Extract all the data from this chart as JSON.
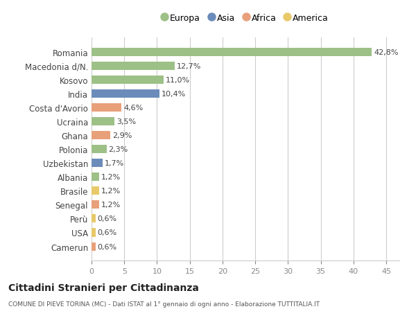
{
  "countries": [
    "Romania",
    "Macedonia d/N.",
    "Kosovo",
    "India",
    "Costa d'Avorio",
    "Ucraina",
    "Ghana",
    "Polonia",
    "Uzbekistan",
    "Albania",
    "Brasile",
    "Senegal",
    "Perù",
    "USA",
    "Camerun"
  ],
  "values": [
    42.8,
    12.7,
    11.0,
    10.4,
    4.6,
    3.5,
    2.9,
    2.3,
    1.7,
    1.2,
    1.2,
    1.2,
    0.6,
    0.6,
    0.6
  ],
  "labels": [
    "42,8%",
    "12,7%",
    "11,0%",
    "10,4%",
    "4,6%",
    "3,5%",
    "2,9%",
    "2,3%",
    "1,7%",
    "1,2%",
    "1,2%",
    "1,2%",
    "0,6%",
    "0,6%",
    "0,6%"
  ],
  "continents": [
    "Europa",
    "Europa",
    "Europa",
    "Asia",
    "Africa",
    "Europa",
    "Africa",
    "Europa",
    "Asia",
    "Europa",
    "America",
    "Africa",
    "America",
    "America",
    "Africa"
  ],
  "colors": {
    "Europa": "#9dc087",
    "Asia": "#6b8cba",
    "Africa": "#e8a07a",
    "America": "#e8c96a"
  },
  "legend_order": [
    "Europa",
    "Asia",
    "Africa",
    "America"
  ],
  "xlim": [
    0,
    47
  ],
  "xticks": [
    0,
    5,
    10,
    15,
    20,
    25,
    30,
    35,
    40,
    45
  ],
  "title": "Cittadini Stranieri per Cittadinanza",
  "subtitle": "COMUNE DI PIEVE TORINA (MC) - Dati ISTAT al 1° gennaio di ogni anno - Elaborazione TUTTITALIA.IT",
  "bg_color": "#ffffff",
  "grid_color": "#cccccc",
  "bar_height": 0.6
}
